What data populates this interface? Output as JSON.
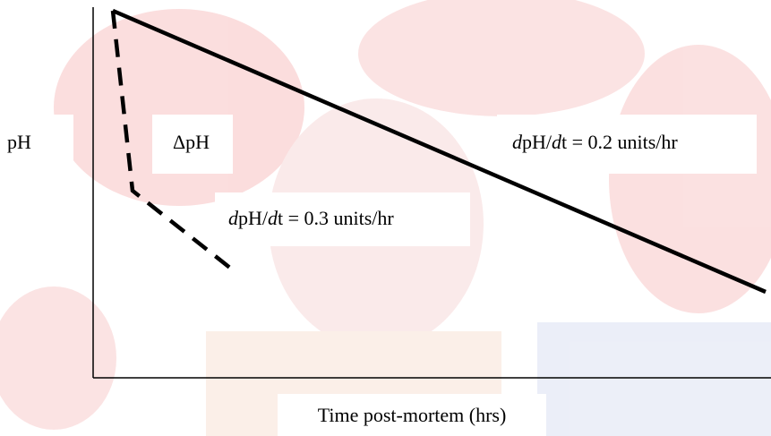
{
  "axis_label_y": "pH",
  "delta_label": "ΔpH",
  "slope_labels": [
    {
      "parts": [
        "d",
        "pH/",
        "d",
        "t = 0.2 units/hr"
      ]
    },
    {
      "parts": [
        "d",
        "pH/",
        "d",
        "t = 0.3 units/hr"
      ]
    }
  ],
  "axis_label_x": "Time post-mortem (hrs)"
}
